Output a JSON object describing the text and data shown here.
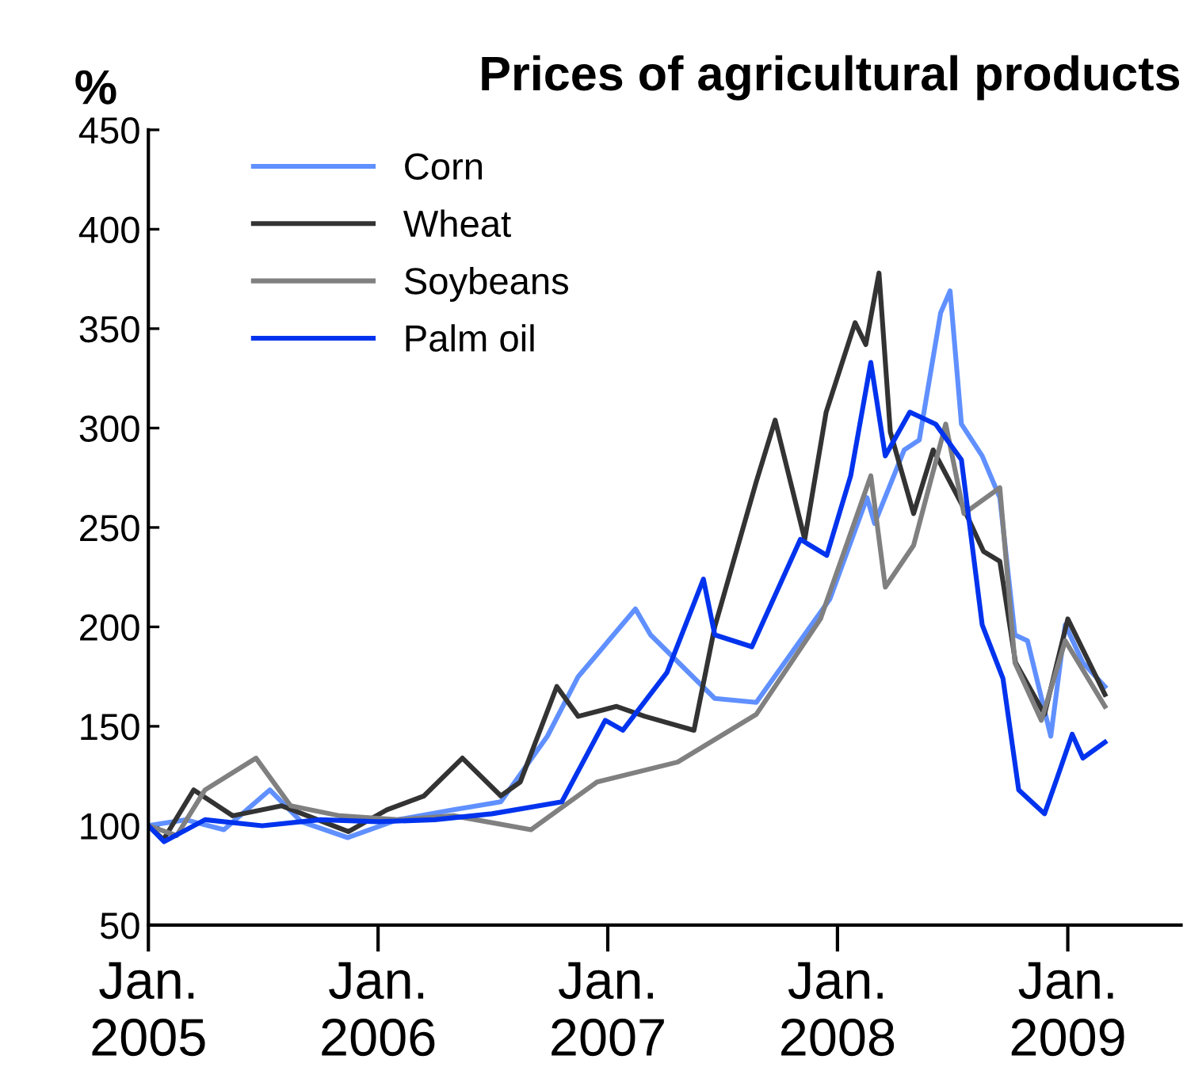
{
  "chart_data": {
    "type": "line",
    "title": "Prices of agricultural products",
    "ylabel": "%",
    "xlim": [
      "2005-01-01",
      "2009-06-30"
    ],
    "xticks": [
      {
        "value": "2005-01-01",
        "label": "Jan.\n2005"
      },
      {
        "value": "2006-01-01",
        "label": "Jan.\n2006"
      },
      {
        "value": "2007-01-01",
        "label": "Jan.\n2007"
      },
      {
        "value": "2008-01-01",
        "label": "Jan.\n2008"
      },
      {
        "value": "2009-01-01",
        "label": "Jan.\n2009"
      }
    ],
    "ylim": [
      50,
      450
    ],
    "yticks": [
      50,
      100,
      150,
      200,
      250,
      300,
      350,
      400,
      450
    ],
    "grid": false,
    "legend": "top left",
    "marker": "none",
    "line_style": "solid",
    "series": [
      {
        "name": "Corn",
        "color": "#6090ff",
        "x": [
          "2005-01-01",
          "2005-03-01",
          "2005-05-01",
          "2005-07-13",
          "2005-09-01",
          "2005-11-14",
          "2006-02-01",
          "2006-05-01",
          "2006-07-15",
          "2006-09-27",
          "2006-11-15",
          "2007-02-14",
          "2007-03-10",
          "2007-06-20",
          "2007-08-25",
          "2007-12-20",
          "2008-02-17",
          "2008-02-29",
          "2008-04-16",
          "2008-05-10",
          "2008-06-13",
          "2008-06-28",
          "2008-07-16",
          "2008-08-18",
          "2008-09-15",
          "2008-10-09",
          "2008-10-29",
          "2008-12-05",
          "2008-12-28",
          "2009-01-25",
          "2009-03-01"
        ],
        "values": [
          100,
          103,
          98,
          118,
          102,
          94,
          103,
          108,
          112,
          145,
          175,
          209,
          196,
          164,
          162,
          214,
          265,
          252,
          289,
          294,
          358,
          369,
          302,
          286,
          265,
          196,
          193,
          145,
          201,
          182,
          170
        ]
      },
      {
        "name": "Wheat",
        "color": "#333333",
        "x": [
          "2005-01-01",
          "2005-01-25",
          "2005-03-14",
          "2005-05-15",
          "2005-08-01",
          "2005-11-15",
          "2006-01-15",
          "2006-03-15",
          "2006-05-15",
          "2006-07-15",
          "2006-08-15",
          "2006-10-12",
          "2006-11-15",
          "2007-01-15",
          "2007-03-01",
          "2007-05-18",
          "2007-06-20",
          "2007-08-25",
          "2007-09-24",
          "2007-11-10",
          "2007-12-14",
          "2008-01-29",
          "2008-02-15",
          "2008-03-07",
          "2008-03-25",
          "2008-05-01",
          "2008-06-01",
          "2008-07-16",
          "2008-08-20",
          "2008-09-15",
          "2008-10-10",
          "2008-11-25",
          "2009-01-01",
          "2009-03-01"
        ],
        "values": [
          100,
          93,
          118,
          105,
          110,
          97,
          108,
          115,
          134,
          115,
          122,
          170,
          155,
          160,
          155,
          148,
          200,
          273,
          304,
          244,
          308,
          353,
          342,
          378,
          298,
          257,
          289,
          262,
          238,
          233,
          182,
          156,
          204,
          166
        ]
      },
      {
        "name": "Soybeans",
        "color": "#808080",
        "x": [
          "2005-01-01",
          "2005-02-15",
          "2005-04-01",
          "2005-06-21",
          "2005-08-15",
          "2005-11-01",
          "2006-02-01",
          "2006-05-01",
          "2006-09-01",
          "2006-12-15",
          "2007-04-22",
          "2007-08-25",
          "2007-12-05",
          "2008-02-23",
          "2008-03-17",
          "2008-05-01",
          "2008-06-21",
          "2008-07-20",
          "2008-09-15",
          "2008-10-09",
          "2008-11-20",
          "2008-12-28",
          "2009-03-01"
        ],
        "values": [
          100,
          95,
          118,
          134,
          110,
          105,
          103,
          105,
          98,
          122,
          132,
          156,
          204,
          276,
          220,
          241,
          302,
          257,
          270,
          182,
          153,
          193,
          160
        ]
      },
      {
        "name": "Palm oil",
        "color": "#0033ee",
        "x": [
          "2005-01-01",
          "2005-01-26",
          "2005-04-01",
          "2005-07-01",
          "2005-10-01",
          "2006-01-01",
          "2006-04-01",
          "2006-07-01",
          "2006-10-20",
          "2006-12-28",
          "2007-01-25",
          "2007-04-05",
          "2007-06-02",
          "2007-06-20",
          "2007-08-18",
          "2007-11-03",
          "2007-12-15",
          "2008-01-22",
          "2008-02-23",
          "2008-03-17",
          "2008-04-25",
          "2008-06-05",
          "2008-07-16",
          "2008-08-18",
          "2008-09-20",
          "2008-10-15",
          "2008-11-25",
          "2008-12-15",
          "2009-01-08",
          "2009-01-25",
          "2009-03-01"
        ],
        "values": [
          100,
          92,
          103,
          100,
          103,
          102,
          103,
          106,
          112,
          153,
          148,
          177,
          224,
          196,
          190,
          244,
          236,
          276,
          333,
          286,
          308,
          302,
          284,
          201,
          174,
          118,
          106,
          124,
          146,
          134,
          142
        ]
      }
    ]
  }
}
